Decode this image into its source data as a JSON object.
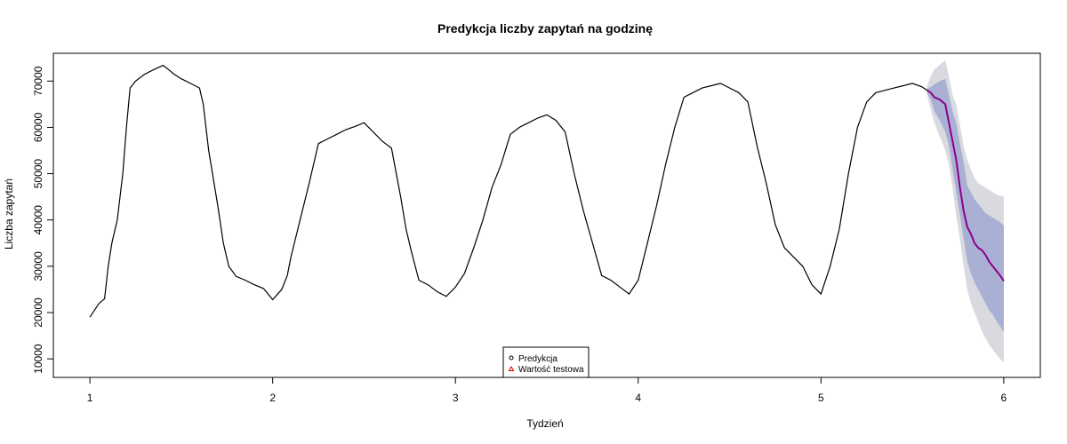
{
  "chart_data": {
    "type": "line",
    "title": "Predykcja liczby zapytań na godzinę",
    "xlabel": "Tydzień",
    "ylabel": "Liczba zapytań",
    "xlim": [
      0.8,
      6.2
    ],
    "ylim": [
      6000,
      76000
    ],
    "x_ticks": [
      1,
      2,
      3,
      4,
      5,
      6
    ],
    "y_ticks": [
      10000,
      20000,
      30000,
      40000,
      50000,
      60000,
      70000
    ],
    "grid": false,
    "legend_position": "bottom-center",
    "legend": [
      {
        "label": "Predykcja",
        "marker": "circle",
        "color": "#000000"
      },
      {
        "label": "Wartość testowa",
        "marker": "triangle",
        "color": "#cc0000"
      }
    ],
    "colors": {
      "history": "#000000",
      "forecast": "#8b008b",
      "band80": "#a9b0d4",
      "band95": "#d9dae0"
    },
    "history": {
      "x": [
        1.0,
        1.05,
        1.08,
        1.1,
        1.12,
        1.15,
        1.18,
        1.2,
        1.22,
        1.25,
        1.3,
        1.35,
        1.38,
        1.4,
        1.43,
        1.46,
        1.5,
        1.55,
        1.6,
        1.62,
        1.65,
        1.7,
        1.73,
        1.76,
        1.8,
        1.85,
        1.9,
        1.95,
        2.0,
        2.05,
        2.08,
        2.1,
        2.15,
        2.2,
        2.25,
        2.3,
        2.35,
        2.4,
        2.45,
        2.5,
        2.55,
        2.6,
        2.65,
        2.7,
        2.73,
        2.76,
        2.8,
        2.85,
        2.9,
        2.95,
        3.0,
        3.05,
        3.1,
        3.15,
        3.2,
        3.25,
        3.3,
        3.35,
        3.4,
        3.45,
        3.5,
        3.55,
        3.6,
        3.65,
        3.7,
        3.75,
        3.8,
        3.85,
        3.9,
        3.95,
        4.0,
        4.05,
        4.1,
        4.15,
        4.2,
        4.25,
        4.3,
        4.35,
        4.4,
        4.45,
        4.5,
        4.55,
        4.6,
        4.65,
        4.7,
        4.75,
        4.8,
        4.85,
        4.9,
        4.95,
        5.0,
        5.05,
        5.1,
        5.15,
        5.2,
        5.25,
        5.3,
        5.35,
        5.4,
        5.45,
        5.5,
        5.55,
        5.58
      ],
      "y": [
        19000,
        22000,
        23000,
        30000,
        35000,
        40000,
        50000,
        60000,
        68500,
        70000,
        71500,
        72500,
        73000,
        73400,
        72500,
        71500,
        70500,
        69500,
        68500,
        65000,
        55000,
        43000,
        35000,
        30000,
        27800,
        27000,
        26000,
        25200,
        22800,
        25000,
        28000,
        32000,
        40000,
        48000,
        56500,
        57500,
        58500,
        59500,
        60200,
        61000,
        59000,
        57000,
        55500,
        45000,
        38000,
        33000,
        27000,
        26000,
        24500,
        23500,
        25500,
        28500,
        34000,
        40000,
        47000,
        52000,
        58500,
        60000,
        61000,
        62000,
        62700,
        61500,
        59000,
        50000,
        42000,
        35000,
        28000,
        27000,
        25500,
        24000,
        27000,
        35000,
        43000,
        52000,
        60000,
        66500,
        67500,
        68500,
        69000,
        69500,
        68500,
        67500,
        65500,
        56000,
        48000,
        39000,
        34000,
        32000,
        30000,
        26000,
        24000,
        30000,
        38000,
        50000,
        60000,
        65500,
        67500,
        68000,
        68500,
        69000,
        69500,
        68800,
        68000
      ]
    },
    "forecast": {
      "x": [
        5.58,
        5.6,
        5.62,
        5.65,
        5.68,
        5.7,
        5.72,
        5.74,
        5.76,
        5.78,
        5.8,
        5.82,
        5.84,
        5.86,
        5.88,
        5.9,
        5.92,
        5.94,
        5.96,
        5.98,
        6.0
      ],
      "y": [
        68000,
        67500,
        66500,
        66000,
        65000,
        61000,
        57000,
        53000,
        47000,
        42000,
        38500,
        37000,
        35000,
        34000,
        33500,
        32500,
        31000,
        30000,
        29000,
        28000,
        26800
      ],
      "lower80": [
        67500,
        66000,
        63500,
        61500,
        59000,
        56000,
        51000,
        46000,
        41000,
        36000,
        31000,
        28500,
        26500,
        25000,
        23500,
        22000,
        20500,
        19500,
        18200,
        17000,
        15800
      ],
      "upper80": [
        68500,
        68700,
        69300,
        70000,
        70500,
        67000,
        63500,
        61000,
        56500,
        52500,
        47500,
        46000,
        44500,
        43500,
        42500,
        41500,
        41000,
        40500,
        40000,
        39500,
        38800
      ],
      "lower95": [
        67000,
        64000,
        61000,
        58000,
        55000,
        52000,
        47000,
        41000,
        36000,
        30000,
        25000,
        22000,
        20000,
        18000,
        16000,
        14500,
        13000,
        12000,
        11000,
        10000,
        9200
      ],
      "upper95": [
        69000,
        71000,
        72500,
        73500,
        74500,
        71000,
        67000,
        65000,
        60500,
        56000,
        53000,
        51000,
        49000,
        48000,
        47500,
        47000,
        46500,
        46000,
        45500,
        45200,
        45000
      ]
    }
  }
}
